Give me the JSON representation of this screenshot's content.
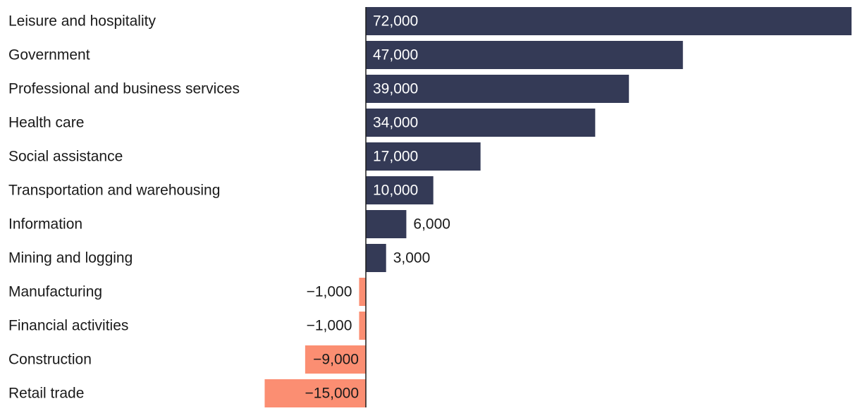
{
  "chart_data": {
    "type": "bar",
    "orientation": "horizontal",
    "title": "",
    "xlabel": "",
    "ylabel": "",
    "categories": [
      "Leisure and hospitality",
      "Government",
      "Professional and business services",
      "Health care",
      "Social assistance",
      "Transportation and warehousing",
      "Information",
      "Mining and logging",
      "Manufacturing",
      "Financial activities",
      "Construction",
      "Retail trade"
    ],
    "values": [
      72000,
      47000,
      39000,
      34000,
      17000,
      10000,
      6000,
      3000,
      -1000,
      -1000,
      -9000,
      -15000
    ],
    "value_labels": [
      "72,000",
      "47,000",
      "39,000",
      "34,000",
      "17,000",
      "10,000",
      "6,000",
      "3,000",
      "−1,000",
      "−1,000",
      "−9,000",
      "−15,000"
    ],
    "xlim": [
      -15000,
      72000
    ],
    "grid": false,
    "legend": "none",
    "colors": {
      "positive": "#343a56",
      "negative": "#fb8e72",
      "label_text": "#1a1a1a",
      "inside_label_text": "#ffffff",
      "axis": "#1a1a1a"
    }
  }
}
